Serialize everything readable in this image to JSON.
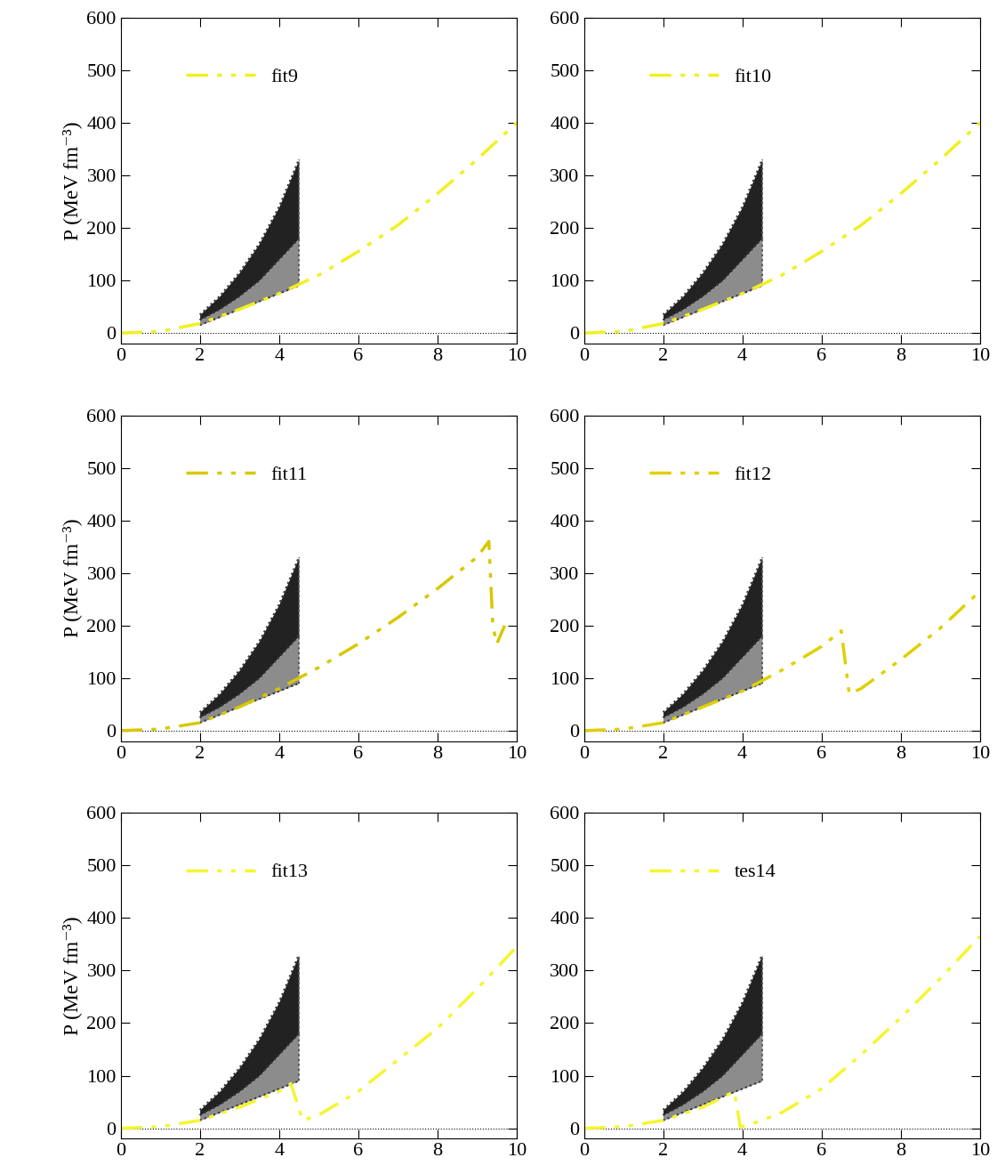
{
  "chart_data": [
    {
      "type": "line",
      "y_label": "P (MeV fm⁻³)",
      "xlim": [
        0,
        10
      ],
      "ylim": [
        -20,
        600
      ],
      "xticks": [
        0,
        2,
        4,
        6,
        8,
        10
      ],
      "yticks": [
        0,
        100,
        200,
        300,
        400,
        500,
        600
      ],
      "hline": 0,
      "bands": [
        {
          "x": [
            2.0,
            2.5,
            3.0,
            3.5,
            4.0,
            4.5
          ],
          "upper": [
            35,
            70,
            115,
            170,
            240,
            330
          ],
          "lower": [
            25,
            45,
            70,
            100,
            140,
            180
          ],
          "color": "#222222"
        },
        {
          "x": [
            2.0,
            2.5,
            3.0,
            3.5,
            4.0,
            4.5
          ],
          "upper": [
            25,
            45,
            70,
            100,
            140,
            180
          ],
          "lower": [
            15,
            30,
            45,
            60,
            75,
            90
          ],
          "color": "#8c8c8c"
        }
      ],
      "series": [
        {
          "name": "fit9",
          "color": "#f0f020",
          "line_style": "dashdot",
          "x": [
            0,
            1,
            2,
            3,
            4,
            5,
            6,
            7,
            8,
            9,
            10
          ],
          "values": [
            0,
            3,
            18,
            45,
            75,
            110,
            155,
            205,
            265,
            330,
            400
          ]
        }
      ]
    },
    {
      "type": "line",
      "xlim": [
        0,
        10
      ],
      "ylim": [
        -20,
        600
      ],
      "xticks": [
        0,
        2,
        4,
        6,
        8,
        10
      ],
      "yticks": [
        0,
        100,
        200,
        300,
        400,
        500,
        600
      ],
      "hline": 0,
      "bands": [
        {
          "x": [
            2.0,
            2.5,
            3.0,
            3.5,
            4.0,
            4.5
          ],
          "upper": [
            35,
            70,
            115,
            170,
            240,
            330
          ],
          "lower": [
            25,
            45,
            70,
            100,
            140,
            180
          ],
          "color": "#222222"
        },
        {
          "x": [
            2.0,
            2.5,
            3.0,
            3.5,
            4.0,
            4.5
          ],
          "upper": [
            25,
            45,
            70,
            100,
            140,
            180
          ],
          "lower": [
            15,
            30,
            45,
            60,
            75,
            90
          ],
          "color": "#8c8c8c"
        }
      ],
      "series": [
        {
          "name": "fit10",
          "color": "#f0f020",
          "line_style": "dashdot",
          "x": [
            0,
            1,
            2,
            3,
            4,
            5,
            6,
            7,
            8,
            9,
            10
          ],
          "values": [
            0,
            3,
            18,
            45,
            75,
            110,
            155,
            205,
            265,
            330,
            400
          ]
        }
      ]
    },
    {
      "type": "line",
      "y_label": "P (MeV fm⁻³)",
      "xlim": [
        0,
        10
      ],
      "ylim": [
        -20,
        600
      ],
      "xticks": [
        0,
        2,
        4,
        6,
        8,
        10
      ],
      "yticks": [
        0,
        100,
        200,
        300,
        400,
        500,
        600
      ],
      "hline": 0,
      "bands": [
        {
          "x": [
            2.0,
            2.5,
            3.0,
            3.5,
            4.0,
            4.5
          ],
          "upper": [
            35,
            70,
            115,
            170,
            240,
            330
          ],
          "lower": [
            25,
            45,
            70,
            100,
            140,
            180
          ],
          "color": "#222222"
        },
        {
          "x": [
            2.0,
            2.5,
            3.0,
            3.5,
            4.0,
            4.5
          ],
          "upper": [
            25,
            45,
            70,
            100,
            140,
            180
          ],
          "lower": [
            15,
            30,
            45,
            60,
            75,
            90
          ],
          "color": "#8c8c8c"
        }
      ],
      "series": [
        {
          "name": "fit11",
          "color": "#d8c800",
          "line_style": "dashdot",
          "x": [
            0,
            1,
            2,
            3,
            4,
            5,
            6,
            7,
            8,
            9,
            9.3,
            9.4,
            9.5,
            9.7
          ],
          "values": [
            0,
            3,
            15,
            45,
            80,
            120,
            165,
            215,
            270,
            330,
            360,
            200,
            165,
            200
          ]
        }
      ]
    },
    {
      "type": "line",
      "xlim": [
        0,
        10
      ],
      "ylim": [
        -20,
        600
      ],
      "xticks": [
        0,
        2,
        4,
        6,
        8,
        10
      ],
      "yticks": [
        0,
        100,
        200,
        300,
        400,
        500,
        600
      ],
      "hline": 0,
      "bands": [
        {
          "x": [
            2.0,
            2.5,
            3.0,
            3.5,
            4.0,
            4.5
          ],
          "upper": [
            35,
            70,
            115,
            170,
            240,
            330
          ],
          "lower": [
            25,
            45,
            70,
            100,
            140,
            180
          ],
          "color": "#222222"
        },
        {
          "x": [
            2.0,
            2.5,
            3.0,
            3.5,
            4.0,
            4.5
          ],
          "upper": [
            25,
            45,
            70,
            100,
            140,
            180
          ],
          "lower": [
            15,
            30,
            45,
            60,
            75,
            90
          ],
          "color": "#8c8c8c"
        }
      ],
      "series": [
        {
          "name": "fit12",
          "color": "#e0d000",
          "line_style": "dashdot",
          "x": [
            0,
            1,
            2,
            3,
            4,
            5,
            6,
            6.5,
            6.7,
            7,
            8,
            9,
            10
          ],
          "values": [
            0,
            3,
            15,
            45,
            75,
            115,
            160,
            190,
            70,
            80,
            135,
            195,
            265
          ]
        }
      ]
    },
    {
      "type": "line",
      "y_label": "P (MeV fm⁻³)",
      "xlim": [
        0,
        10
      ],
      "ylim": [
        -20,
        600
      ],
      "xticks": [
        0,
        2,
        4,
        6,
        8,
        10
      ],
      "yticks": [
        0,
        100,
        200,
        300,
        400,
        500,
        600
      ],
      "hline": 0,
      "bands": [
        {
          "x": [
            2.0,
            2.5,
            3.0,
            3.5,
            4.0,
            4.5
          ],
          "upper": [
            35,
            70,
            115,
            170,
            240,
            330
          ],
          "lower": [
            25,
            45,
            70,
            100,
            140,
            180
          ],
          "color": "#222222"
        },
        {
          "x": [
            2.0,
            2.5,
            3.0,
            3.5,
            4.0,
            4.5
          ],
          "upper": [
            25,
            45,
            70,
            100,
            140,
            180
          ],
          "lower": [
            15,
            30,
            45,
            60,
            75,
            90
          ],
          "color": "#8c8c8c"
        }
      ],
      "series": [
        {
          "name": "fit13",
          "color": "#f5f530",
          "line_style": "dashdot",
          "x": [
            0,
            1,
            2,
            3,
            4,
            4.3,
            4.6,
            5,
            6,
            7,
            8,
            9,
            10
          ],
          "values": [
            0,
            3,
            15,
            40,
            70,
            85,
            15,
            25,
            70,
            130,
            190,
            265,
            345
          ]
        }
      ]
    },
    {
      "type": "line",
      "xlim": [
        0,
        10
      ],
      "ylim": [
        -20,
        600
      ],
      "xticks": [
        0,
        2,
        4,
        6,
        8,
        10
      ],
      "yticks": [
        0,
        100,
        200,
        300,
        400,
        500,
        600
      ],
      "hline": 0,
      "bands": [
        {
          "x": [
            2.0,
            2.5,
            3.0,
            3.5,
            4.0,
            4.5
          ],
          "upper": [
            35,
            70,
            115,
            170,
            240,
            330
          ],
          "lower": [
            25,
            45,
            70,
            100,
            140,
            180
          ],
          "color": "#222222"
        },
        {
          "x": [
            2.0,
            2.5,
            3.0,
            3.5,
            4.0,
            4.5
          ],
          "upper": [
            25,
            45,
            70,
            100,
            140,
            180
          ],
          "lower": [
            15,
            30,
            45,
            60,
            75,
            90
          ],
          "color": "#8c8c8c"
        }
      ],
      "series": [
        {
          "name": "tes14",
          "color": "#f5f530",
          "line_style": "dashdot",
          "x": [
            0,
            1,
            2,
            3,
            3.8,
            3.95,
            4.5,
            5,
            6,
            7,
            8,
            9,
            10
          ],
          "values": [
            0,
            3,
            15,
            40,
            70,
            2,
            15,
            30,
            75,
            140,
            210,
            285,
            365
          ]
        }
      ]
    }
  ]
}
